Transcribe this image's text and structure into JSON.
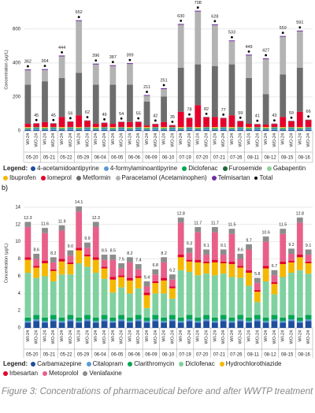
{
  "chart_data": [
    {
      "type": "stacked-bar",
      "y_label": "Concentration (μg/L)",
      "legend_title": "Legend:",
      "groups": [
        "05-20",
        "05-21",
        "05-22",
        "05-29",
        "06-04",
        "06-05",
        "06-06",
        "06-09",
        "06-10",
        "07-19",
        "07-20",
        "07-21",
        "07-26",
        "08-11",
        "08-12",
        "08-15",
        "08-16"
      ],
      "categories": [
        "WI-24",
        "WO-24",
        "WI-24",
        "WO-24",
        "WI-24",
        "WO-24",
        "WI-24",
        "WO-24",
        "WI-24",
        "WO-24",
        "WI-24",
        "WO-24",
        "WI-24",
        "WO-24",
        "WI-24",
        "WO-24",
        "WI-24",
        "WO-24",
        "WI-24",
        "WO-24",
        "WI-24",
        "WO-24",
        "WI-24",
        "WO-24",
        "WI-24",
        "WO-24",
        "WI-24",
        "WO-24",
        "WI-24",
        "WO-24",
        "WI-24",
        "WO-24",
        "WI-24",
        "WO-24"
      ],
      "ylim": [
        0,
        720
      ],
      "yticks": [
        0,
        200,
        400,
        600
      ],
      "grid": true,
      "series": [
        {
          "name": "4-acetamidoantipyrine",
          "color": "#1f4e9c",
          "values": [
            5,
            6,
            5,
            6,
            5,
            6,
            5,
            6,
            5,
            6,
            5,
            6,
            5,
            6,
            5,
            6,
            5,
            6,
            5,
            6,
            5,
            6,
            5,
            6,
            5,
            6,
            5,
            6,
            5,
            6,
            5,
            6,
            5,
            6
          ]
        },
        {
          "name": "4-formylaminoantipyrine",
          "color": "#5b9bd5",
          "values": [
            4,
            8,
            4,
            8,
            4,
            8,
            4,
            8,
            4,
            8,
            4,
            8,
            4,
            8,
            4,
            8,
            4,
            8,
            4,
            8,
            4,
            8,
            4,
            8,
            4,
            8,
            4,
            8,
            4,
            8,
            4,
            8,
            4,
            8
          ]
        },
        {
          "name": "Diclofenac",
          "color": "#00a651",
          "values": [
            3,
            4,
            3,
            4,
            3,
            4,
            3,
            4,
            3,
            4,
            3,
            4,
            3,
            4,
            3,
            4,
            3,
            4,
            3,
            4,
            3,
            4,
            3,
            4,
            3,
            4,
            3,
            4,
            3,
            4,
            3,
            4,
            3,
            4
          ]
        },
        {
          "name": "Furosemide",
          "color": "#1b6b35",
          "values": [
            2,
            1,
            2,
            1,
            2,
            1,
            2,
            1,
            2,
            1,
            2,
            1,
            2,
            1,
            2,
            1,
            2,
            1,
            2,
            1,
            2,
            1,
            2,
            1,
            2,
            1,
            2,
            1,
            2,
            1,
            2,
            1,
            2,
            1
          ]
        },
        {
          "name": "Gabapentin",
          "color": "#8fd19e",
          "values": [
            3,
            3,
            3,
            3,
            3,
            3,
            3,
            3,
            3,
            3,
            3,
            3,
            3,
            3,
            3,
            3,
            3,
            3,
            3,
            3,
            3,
            3,
            3,
            3,
            3,
            3,
            3,
            3,
            3,
            3,
            3,
            3,
            3,
            3
          ]
        },
        {
          "name": "Ibuprofen",
          "color": "#f5b800",
          "values": [
            5,
            0,
            5,
            0,
            5,
            0,
            5,
            0,
            5,
            0,
            5,
            0,
            5,
            0,
            5,
            0,
            5,
            0,
            5,
            0,
            5,
            0,
            5,
            0,
            5,
            0,
            5,
            0,
            5,
            0,
            5,
            0,
            5,
            0
          ]
        },
        {
          "name": "Iomeprol",
          "color": "#e4002b",
          "values": [
            20,
            20,
            30,
            20,
            60,
            31,
            70,
            37,
            20,
            24,
            20,
            29,
            30,
            30,
            10,
            17,
            30,
            10,
            90,
            53,
            130,
            57,
            60,
            52,
            70,
            34,
            20,
            16,
            15,
            18,
            60,
            34,
            90,
            41
          ]
        },
        {
          "name": "Metformin",
          "color": "#6d6d6d",
          "values": [
            230,
            2,
            240,
            2,
            230,
            2,
            250,
            2,
            230,
            2,
            230,
            2,
            220,
            2,
            140,
            2,
            150,
            2,
            260,
            2,
            240,
            2,
            300,
            2,
            300,
            2,
            270,
            2,
            180,
            2,
            250,
            2,
            260,
            2
          ]
        },
        {
          "name": "Paracetamol (Acetaminophen)",
          "color": "#b3b3b3",
          "values": [
            85,
            0,
            67,
            0,
            127,
            0,
            305,
            0,
            119,
            0,
            110,
            0,
            122,
            0,
            34,
            0,
            44,
            0,
            253,
            0,
            311,
            0,
            241,
            0,
            136,
            0,
            132,
            0,
            205,
            0,
            222,
            0,
            214,
            0
          ]
        },
        {
          "name": "Telmisartan",
          "color": "#7030a0",
          "values": [
            5,
            1,
            5,
            1,
            5,
            1,
            5,
            1,
            5,
            1,
            5,
            1,
            5,
            1,
            5,
            1,
            5,
            1,
            5,
            1,
            5,
            1,
            5,
            1,
            5,
            1,
            5,
            1,
            5,
            1,
            5,
            1,
            5,
            1
          ]
        },
        {
          "name": "Total",
          "color": "#000000",
          "style": "marker",
          "values": [
            362,
            45,
            364,
            45,
            444,
            56,
            652,
            62,
            396,
            49,
            387,
            54,
            399,
            55,
            211,
            42,
            251,
            35,
            630,
            78,
            708,
            82,
            628,
            77,
            533,
            59,
            449,
            41,
            427,
            43,
            559,
            59,
            591,
            66
          ]
        }
      ]
    },
    {
      "type": "stacked-bar",
      "panel_label": "b)",
      "y_label": "Concentration (μg/L)",
      "legend_title": "Legend:",
      "groups": [
        "05-20",
        "05-21",
        "05-22",
        "05-29",
        "06-04",
        "06-05",
        "06-06",
        "06-09",
        "06-10",
        "07-19",
        "07-20",
        "07-21",
        "07-26",
        "08-11",
        "08-12",
        "08-15",
        "08-16"
      ],
      "categories": [
        "WI-24",
        "WO-24",
        "WI-24",
        "WO-24",
        "WI-24",
        "WO-24",
        "WI-24",
        "WO-24",
        "WI-24",
        "WO-24",
        "WI-24",
        "WO-24",
        "WI-24",
        "WO-24",
        "WI-24",
        "WO-24",
        "WI-24",
        "WO-24",
        "WI-24",
        "WO-24",
        "WI-24",
        "WO-24",
        "WI-24",
        "WO-24",
        "WI-24",
        "WO-24",
        "WI-24",
        "WO-24",
        "WI-24",
        "WO-24",
        "WI-24",
        "WO-24",
        "WI-24",
        "WO-24"
      ],
      "ylim": [
        0,
        15
      ],
      "yticks": [
        0,
        2,
        4,
        6,
        8,
        10,
        12,
        14
      ],
      "grid": true,
      "series": [
        {
          "name": "Carbamazepine",
          "color": "#1f4e9c",
          "values": [
            0.6,
            0.8,
            0.6,
            0.8,
            0.6,
            0.8,
            0.6,
            0.8,
            0.6,
            0.8,
            0.6,
            0.8,
            0.6,
            0.8,
            0.6,
            0.8,
            0.6,
            0.8,
            0.6,
            0.8,
            0.6,
            0.8,
            0.6,
            0.8,
            0.6,
            0.8,
            0.6,
            0.8,
            0.6,
            0.8,
            0.6,
            0.8,
            0.6,
            0.8
          ]
        },
        {
          "name": "Citalopram",
          "color": "#5b9bd5",
          "values": [
            0.2,
            0.2,
            0.2,
            0.2,
            0.2,
            0.2,
            0.2,
            0.2,
            0.2,
            0.2,
            0.2,
            0.2,
            0.2,
            0.2,
            0.2,
            0.2,
            0.2,
            0.2,
            0.2,
            0.2,
            0.2,
            0.2,
            0.2,
            0.2,
            0.2,
            0.2,
            0.2,
            0.2,
            0.2,
            0.2,
            0.2,
            0.2,
            0.2,
            0.2
          ]
        },
        {
          "name": "Clarithromycin",
          "color": "#00a651",
          "values": [
            0.4,
            0.5,
            0.4,
            0.5,
            0.4,
            0.5,
            0.4,
            0.5,
            0.4,
            0.5,
            0.4,
            0.5,
            0.4,
            0.5,
            0.4,
            0.5,
            0.4,
            0.5,
            0.4,
            0.5,
            0.4,
            0.5,
            0.4,
            0.5,
            0.4,
            0.5,
            0.4,
            0.5,
            0.4,
            0.5,
            0.4,
            0.5,
            0.4,
            0.5
          ]
        },
        {
          "name": "Diclofenac",
          "color": "#7fd1a0",
          "values": [
            5.2,
            4.3,
            4.8,
            3.9,
            5.0,
            4.7,
            6.3,
            5.6,
            5.2,
            4.2,
            2.9,
            3.2,
            2.8,
            3.1,
            1.1,
            2.5,
            2.8,
            1.9,
            5.5,
            5.0,
            4.9,
            4.8,
            4.9,
            4.8,
            4.7,
            4.3,
            3.7,
            1.5,
            4.2,
            2.4,
            4.7,
            4.9,
            5.5,
            4.8
          ]
        },
        {
          "name": "Hydrochlorothiazide",
          "color": "#f5b800",
          "values": [
            1.5,
            1.2,
            1.5,
            1.2,
            1.5,
            1.2,
            1.5,
            1.2,
            1.5,
            1.2,
            1.5,
            1.2,
            1.5,
            1.2,
            1.5,
            1.2,
            1.5,
            1.2,
            1.5,
            1.2,
            1.5,
            1.2,
            1.5,
            1.2,
            1.5,
            1.2,
            1.5,
            1.2,
            1.5,
            1.2,
            1.5,
            1.2,
            1.5,
            1.2
          ]
        },
        {
          "name": "Irbesartan",
          "color": "#e4002b",
          "values": [
            0.3,
            0.2,
            0.3,
            0.2,
            0.3,
            0.2,
            0.3,
            0.2,
            0.3,
            0.2,
            0.3,
            0.2,
            0.3,
            0.2,
            0.3,
            0.2,
            0.3,
            0.2,
            0.3,
            0.2,
            0.3,
            0.2,
            0.3,
            0.2,
            0.3,
            0.2,
            0.3,
            0.2,
            0.3,
            0.2,
            0.3,
            0.2,
            0.3,
            0.2
          ]
        },
        {
          "name": "Metoprolol",
          "color": "#e8608a",
          "values": [
            3.5,
            0.8,
            3.2,
            0.8,
            3.3,
            0.8,
            4.2,
            0.8,
            3.5,
            0.8,
            2.0,
            0.8,
            1.8,
            0.8,
            0.7,
            0.8,
            1.8,
            0.8,
            3.7,
            0.8,
            3.2,
            0.8,
            3.2,
            0.8,
            3.2,
            0.8,
            2.4,
            0.8,
            2.8,
            0.8,
            3.2,
            0.8,
            3.7,
            0.8
          ]
        },
        {
          "name": "Venlafaxine",
          "color": "#8c8c8c",
          "values": [
            0.6,
            0.6,
            0.6,
            0.6,
            0.6,
            0.6,
            0.6,
            0.6,
            0.6,
            0.6,
            0.6,
            0.6,
            0.6,
            0.6,
            0.6,
            0.6,
            0.6,
            0.6,
            0.6,
            0.6,
            0.6,
            0.6,
            0.6,
            0.6,
            0.6,
            0.6,
            0.6,
            0.6,
            0.6,
            0.6,
            0.6,
            0.6,
            0.6,
            0.6
          ]
        }
      ],
      "totals": {
        "values": [
          12.3,
          8.6,
          11.6,
          8.2,
          11.9,
          9.0,
          14.1,
          9.9,
          12.3,
          8.5,
          8.5,
          7.5,
          8.2,
          7.4,
          5.4,
          6.8,
          8.2,
          6.2,
          12.8,
          9.3,
          11.7,
          9.1,
          11.7,
          9.1,
          11.5,
          8.6,
          9.7,
          5.8,
          10.6,
          6.7,
          11.5,
          9.2,
          12.8,
          9.1
        ],
        "value_labels": [
          "12.3",
          "8.6",
          "11.6",
          "8.2",
          "11.9",
          "9.0",
          "14.1",
          "9.9",
          "12.3",
          "8.5",
          "8.5",
          "7.5",
          "8.2",
          "7.4",
          "5.4",
          "6.8",
          "8.2",
          "6.2",
          "12.8",
          "9.3",
          "11.7",
          "9.1",
          "11.7",
          "9.1",
          "11.5",
          "8.6",
          "9.7",
          "5.8",
          "10.6",
          "6.7",
          "11.5",
          "9.2",
          "12.8",
          "9.1"
        ]
      }
    }
  ],
  "caption": "Figure 3: Concentrations of pharmaceutical before and after WWTP treatment"
}
